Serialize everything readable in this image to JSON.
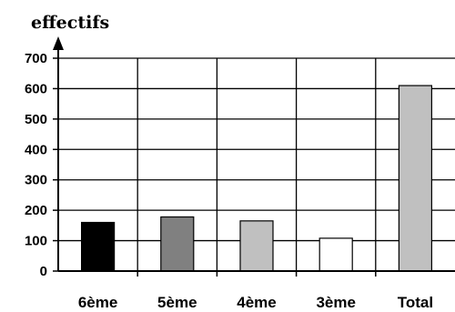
{
  "chart_data": {
    "type": "bar",
    "title": "",
    "xlabel": "",
    "ylabel": "effectifs",
    "ylim": [
      0,
      700
    ],
    "yticks": [
      0,
      100,
      200,
      300,
      400,
      500,
      600,
      700
    ],
    "grid": "horizontal and vertical",
    "categories": [
      "6ème",
      "5ème",
      "4ème",
      "3ème",
      "Total"
    ],
    "values": [
      160,
      178,
      165,
      108,
      610
    ],
    "colors": [
      "#000000",
      "#808080",
      "#c0c0c0",
      "#ffffff",
      "#c0c0c0"
    ]
  }
}
